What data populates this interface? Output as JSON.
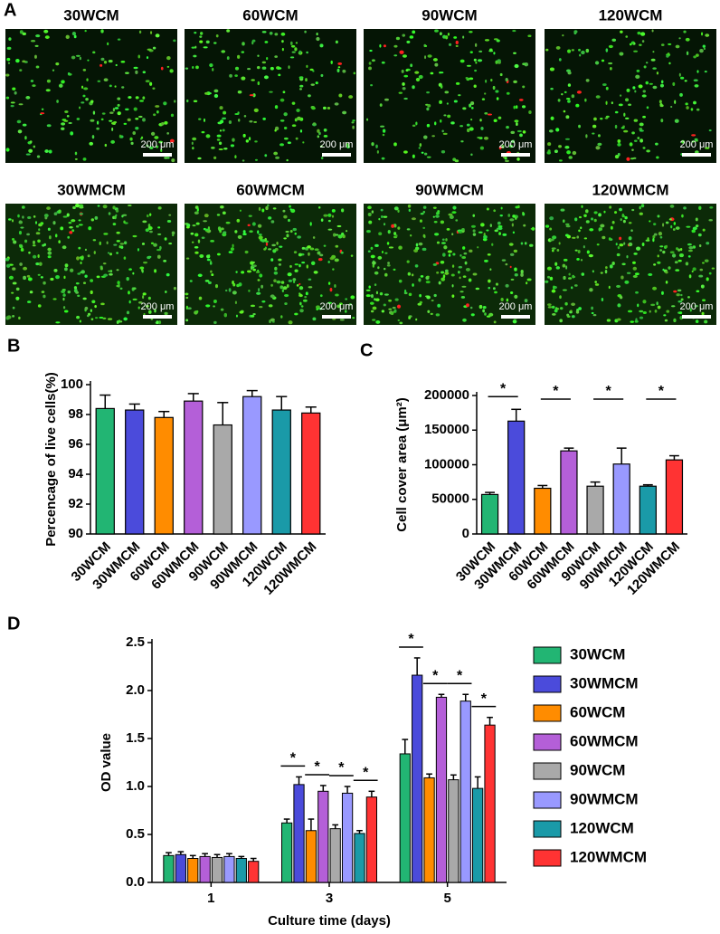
{
  "panel_a": {
    "panel_label": "A",
    "images": [
      {
        "title": "30WCM",
        "scale_bar": "200 μm"
      },
      {
        "title": "60WCM",
        "scale_bar": "200 μm"
      },
      {
        "title": "90WCM",
        "scale_bar": "200 μm"
      },
      {
        "title": "120WCM",
        "scale_bar": "200 μm"
      },
      {
        "title": "30WMCM",
        "scale_bar": "200 μm"
      },
      {
        "title": "60WMCM",
        "scale_bar": "200 μm"
      },
      {
        "title": "90WMCM",
        "scale_bar": "200 μm"
      },
      {
        "title": "120WMCM",
        "scale_bar": "200 μm"
      }
    ]
  },
  "chart_data": [
    {
      "type": "bar",
      "panel_label": "B",
      "ylabel": "Percencage of live cells(%)",
      "categories": [
        "30WCM",
        "30WMCM",
        "60WCM",
        "60WMCM",
        "90WCM",
        "90WMCM",
        "120WCM",
        "120WMCM"
      ],
      "values": [
        98.4,
        98.3,
        97.8,
        98.9,
        97.3,
        99.2,
        98.3,
        98.1
      ],
      "errors": [
        0.9,
        0.4,
        0.4,
        0.5,
        1.5,
        0.4,
        0.9,
        0.4
      ],
      "colors": [
        "#22b573",
        "#4b4bdb",
        "#ff8c00",
        "#b45fd8",
        "#a9a9a9",
        "#9999ff",
        "#1a9aa8",
        "#ff3333"
      ],
      "ylim": [
        90,
        100
      ],
      "yticks": [
        90,
        92,
        94,
        96,
        98,
        100
      ]
    },
    {
      "type": "bar",
      "panel_label": "C",
      "ylabel": "Cell cover area (μm²)",
      "categories": [
        "30WCM",
        "30WMCM",
        "60WCM",
        "60WMCM",
        "90WCM",
        "90WMCM",
        "120WCM",
        "120WMCM"
      ],
      "values": [
        57000,
        163000,
        66000,
        120000,
        69000,
        101000,
        69000,
        107000
      ],
      "errors": [
        3000,
        17000,
        4000,
        4000,
        6000,
        23000,
        2000,
        6000
      ],
      "colors": [
        "#22b573",
        "#4b4bdb",
        "#ff8c00",
        "#b45fd8",
        "#a9a9a9",
        "#9999ff",
        "#1a9aa8",
        "#ff3333"
      ],
      "ylim": [
        0,
        200000
      ],
      "yticks": [
        0,
        50000,
        100000,
        150000,
        200000
      ],
      "annotations": [
        "*",
        "*",
        "*",
        "*"
      ]
    },
    {
      "type": "grouped-bar",
      "panel_label": "D",
      "ylabel": "OD value",
      "xlabel": "Culture time (days)",
      "categories": [
        "1",
        "3",
        "5"
      ],
      "series": [
        {
          "name": "30WCM",
          "color": "#22b573",
          "values": [
            0.28,
            0.62,
            1.34
          ],
          "errors": [
            0.03,
            0.04,
            0.15
          ]
        },
        {
          "name": "30WMCM",
          "color": "#4b4bdb",
          "values": [
            0.29,
            1.02,
            2.16
          ],
          "errors": [
            0.03,
            0.08,
            0.18
          ]
        },
        {
          "name": "60WCM",
          "color": "#ff8c00",
          "values": [
            0.25,
            0.54,
            1.09
          ],
          "errors": [
            0.03,
            0.12,
            0.04
          ]
        },
        {
          "name": "60WMCM",
          "color": "#b45fd8",
          "values": [
            0.27,
            0.95,
            1.93
          ],
          "errors": [
            0.03,
            0.06,
            0.03
          ]
        },
        {
          "name": "90WCM",
          "color": "#a9a9a9",
          "values": [
            0.26,
            0.56,
            1.07
          ],
          "errors": [
            0.03,
            0.04,
            0.05
          ]
        },
        {
          "name": "90WMCM",
          "color": "#9999ff",
          "values": [
            0.27,
            0.93,
            1.89
          ],
          "errors": [
            0.03,
            0.07,
            0.07
          ]
        },
        {
          "name": "120WCM",
          "color": "#1a9aa8",
          "values": [
            0.25,
            0.51,
            0.98
          ],
          "errors": [
            0.02,
            0.03,
            0.12
          ]
        },
        {
          "name": "120WMCM",
          "color": "#ff3333",
          "values": [
            0.22,
            0.89,
            1.64
          ],
          "errors": [
            0.03,
            0.06,
            0.08
          ]
        }
      ],
      "ylim": [
        0,
        2.5
      ],
      "yticks": [
        {
          "value": 0,
          "label": "0.0"
        },
        0.5,
        {
          "value": 1,
          "label": "1.0"
        },
        1.5,
        {
          "value": 2,
          "label": "2.0"
        },
        2.5
      ],
      "annotations": [
        "*",
        "*",
        "*",
        "*",
        "*",
        "*",
        "*",
        "*"
      ]
    }
  ]
}
